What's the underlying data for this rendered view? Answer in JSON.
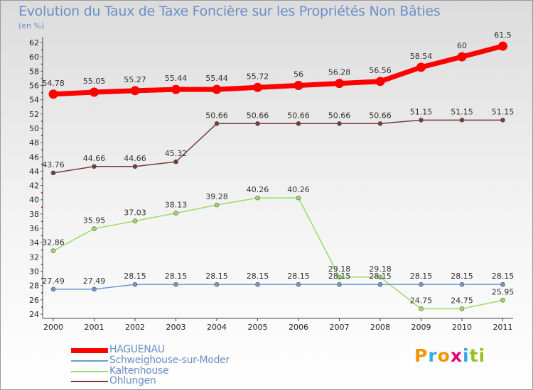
{
  "title": "Evolution du Taux de Taxe Foncière sur les Propriétés Non Bâties",
  "unit": "(en %)",
  "logo": {
    "letters": [
      "P",
      "r",
      "o",
      "x",
      "i",
      "t",
      "i"
    ],
    "colors": [
      "#f29400",
      "#35a8e0",
      "#f29400",
      "#e2007a",
      "#35a8e0",
      "#96c11f",
      "#96c11f"
    ]
  },
  "chart_data": {
    "type": "line",
    "title": "Evolution du Taux de Taxe Foncière sur les Propriétés Non Bâties",
    "ylabel": "(en %)",
    "xlabel": "",
    "categories": [
      "2000",
      "2001",
      "2002",
      "2003",
      "2004",
      "2005",
      "2006",
      "2007",
      "2008",
      "2009",
      "2010",
      "2011"
    ],
    "ylim": [
      24,
      62
    ],
    "yticks": [
      24,
      26,
      28,
      30,
      32,
      34,
      36,
      38,
      40,
      42,
      44,
      46,
      48,
      50,
      52,
      54,
      56,
      58,
      60,
      62
    ],
    "series": [
      {
        "name": "HAGUENAU",
        "color": "#ff0000",
        "values": [
          54.78,
          55.05,
          55.27,
          55.44,
          55.44,
          55.72,
          56,
          56.28,
          56.56,
          58.54,
          60,
          61.5
        ],
        "labels": [
          "54.78",
          "55.05",
          "55.27",
          "55.44",
          "55.44",
          "55.72",
          "56",
          "56.28",
          "56.56",
          "58.54",
          "60",
          "61.5"
        ]
      },
      {
        "name": "Schweighouse-sur-Moder",
        "color": "#6b9bcc",
        "values": [
          27.49,
          27.49,
          28.15,
          28.15,
          28.15,
          28.15,
          28.15,
          28.15,
          28.15,
          28.15,
          28.15,
          28.15
        ],
        "labels": [
          "27.49",
          "27.49",
          "28.15",
          "28.15",
          "28.15",
          "28.15",
          "28.15",
          "28.15",
          "28.15",
          "28.15",
          "28.15",
          "28.15"
        ]
      },
      {
        "name": "Kaltenhouse",
        "color": "#99dd66",
        "values": [
          32.86,
          35.95,
          37.03,
          38.13,
          39.28,
          40.26,
          40.26,
          29.18,
          29.18,
          24.75,
          24.75,
          25.95
        ],
        "labels": [
          "32.86",
          "35.95",
          "37.03",
          "38.13",
          "39.28",
          "40.26",
          "40.26",
          "29.18",
          "29.18",
          "24.75",
          "24.75",
          "25.95"
        ]
      },
      {
        "name": "Ohlungen",
        "color": "#7a3b3b",
        "values": [
          43.76,
          44.66,
          44.66,
          45.32,
          50.66,
          50.66,
          50.66,
          50.66,
          50.66,
          51.15,
          51.15,
          51.15
        ],
        "labels": [
          "43.76",
          "44.66",
          "44.66",
          "45.32",
          "50.66",
          "50.66",
          "50.66",
          "50.66",
          "50.66",
          "51.15",
          "51.15",
          "51.15"
        ]
      }
    ],
    "legend": [
      "HAGUENAU",
      "Schweighouse-sur-Moder",
      "Kaltenhouse",
      "Ohlungen"
    ]
  }
}
